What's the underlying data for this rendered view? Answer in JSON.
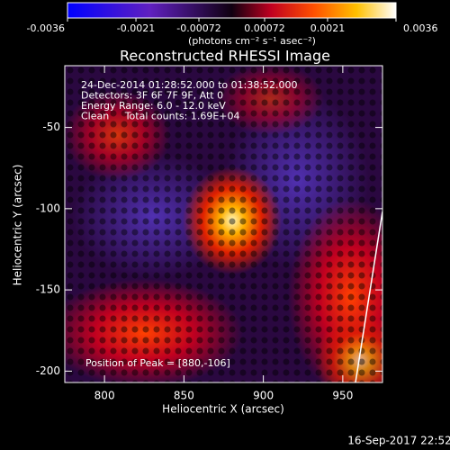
{
  "chart_data": {
    "type": "heatmap",
    "title": "Reconstructed RHESSI Image",
    "colorbar": {
      "label": "(photons cm⁻² s⁻¹ asec⁻²)",
      "lim": [
        -0.0036,
        0.0036
      ],
      "ticks": [
        -0.0036,
        -0.0021,
        -0.00072,
        0.00072,
        0.0021,
        0.0036
      ]
    },
    "xlabel": "Heliocentric X (arcsec)",
    "ylabel": "Heliocentric Y (arcsec)",
    "xlim": [
      775,
      975
    ],
    "ylim": [
      -207,
      -12
    ],
    "xticks": [
      800,
      850,
      900,
      950
    ],
    "yticks": [
      -50,
      -100,
      -150,
      -200
    ],
    "annotations": [
      "24-Dec-2014 01:28:52.000 to 01:38:52.000",
      "Detectors: 3F 6F 7F 9F, Att 0",
      "Energy Range: 6.0 - 12.0 keV",
      "Clean     Total counts: 1.69E+04"
    ],
    "peak_label": "Position of Peak = [880,-106]",
    "timestamp": "16-Sep-2017 22:52"
  }
}
